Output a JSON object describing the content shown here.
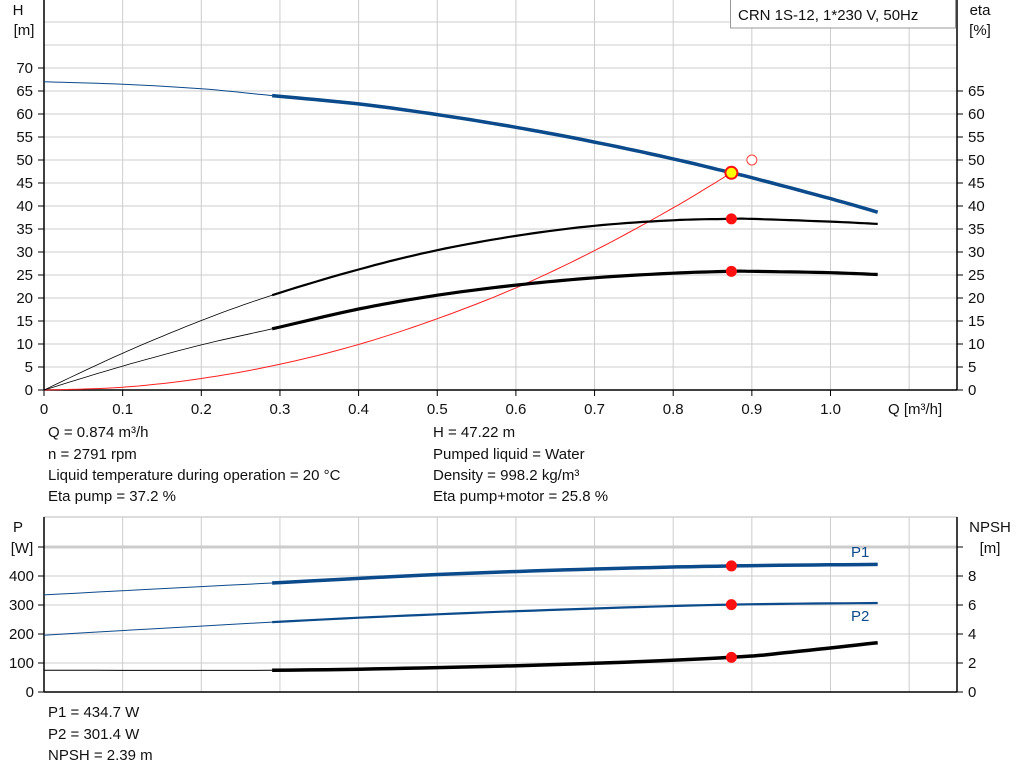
{
  "title_box": "CRN 1S-12, 1*230 V, 50Hz",
  "chart_data": [
    {
      "type": "line",
      "ylabel_left": "H",
      "yunit_left": "[m]",
      "ylabel_right": "eta",
      "yunit_right": "[%]",
      "xlabel": "Q [m³/h]",
      "xlim": [
        0,
        1.16
      ],
      "ylim": [
        0,
        85
      ],
      "x_ticks": [
        "0",
        "0.1",
        "0.2",
        "0.3",
        "0.4",
        "0.5",
        "0.6",
        "0.7",
        "0.8",
        "0.9",
        "1.0"
      ],
      "y_ticks_left": [
        "0",
        "5",
        "10",
        "15",
        "20",
        "25",
        "30",
        "35",
        "40",
        "45",
        "50",
        "55",
        "60",
        "65",
        "70"
      ],
      "y_ticks_right": [
        "0",
        "5",
        "10",
        "15",
        "20",
        "25",
        "30",
        "35",
        "40",
        "45",
        "50",
        "55",
        "60",
        "65"
      ],
      "grid": true,
      "series": [
        {
          "id": "H",
          "color": "#0b4a8b",
          "axis": "left",
          "points": [
            [
              0,
              67
            ],
            [
              0.1,
              66.47
            ],
            [
              0.2,
              65.49
            ],
            [
              0.29,
              64.0
            ],
            [
              0.4,
              62.19
            ],
            [
              0.5,
              59.87
            ],
            [
              0.6,
              57.11
            ],
            [
              0.7,
              53.9
            ],
            [
              0.8,
              50.25
            ],
            [
              0.874,
              47.22
            ],
            [
              0.9,
              46.15
            ],
            [
              1.0,
              41.6
            ],
            [
              1.06,
              38.66
            ]
          ]
        },
        {
          "id": "eta-pump",
          "color": "#000000",
          "axis": "right",
          "points": [
            [
              0,
              0
            ],
            [
              0.1,
              8.0
            ],
            [
              0.2,
              15.1
            ],
            [
              0.29,
              20.6
            ],
            [
              0.4,
              26.2
            ],
            [
              0.5,
              30.4
            ],
            [
              0.6,
              33.5
            ],
            [
              0.7,
              35.7
            ],
            [
              0.8,
              36.9
            ],
            [
              0.874,
              37.2
            ],
            [
              0.9,
              37.2
            ],
            [
              1.0,
              36.6
            ],
            [
              1.06,
              36.1
            ]
          ]
        },
        {
          "id": "eta-pump-motor",
          "color": "#000000",
          "axis": "right",
          "points": [
            [
              0,
              0
            ],
            [
              0.1,
              5.2
            ],
            [
              0.2,
              9.8
            ],
            [
              0.29,
              13.3
            ],
            [
              0.4,
              17.6
            ],
            [
              0.5,
              20.6
            ],
            [
              0.6,
              22.8
            ],
            [
              0.7,
              24.4
            ],
            [
              0.8,
              25.4
            ],
            [
              0.874,
              25.8
            ],
            [
              0.9,
              25.8
            ],
            [
              1.0,
              25.5
            ],
            [
              1.06,
              25.1
            ]
          ]
        },
        {
          "id": "system-curve",
          "color": "#ff2020",
          "axis": "left",
          "points": [
            [
              0,
              0
            ],
            [
              0.1,
              0.6
            ],
            [
              0.2,
              2.5
            ],
            [
              0.3,
              5.6
            ],
            [
              0.4,
              9.9
            ],
            [
              0.5,
              15.5
            ],
            [
              0.6,
              22.2
            ],
            [
              0.7,
              30.3
            ],
            [
              0.8,
              39.6
            ],
            [
              0.874,
              47.22
            ]
          ]
        }
      ],
      "duty_point": {
        "q": 0.874,
        "h": 47.22,
        "eta_pump": 37.2,
        "eta_total": 25.8
      },
      "requested_point": {
        "q": 0.9,
        "h": 50
      }
    },
    {
      "type": "line",
      "ylabel_left": "P",
      "yunit_left": "[W]",
      "ylabel_right": "NPSH",
      "yunit_right": "[m]",
      "xlim": [
        0,
        1.16
      ],
      "ylim": [
        0,
        500
      ],
      "y_ticks_left": [
        "0",
        "100",
        "200",
        "300",
        "400"
      ],
      "y_ticks_right": [
        "0",
        "2",
        "4",
        "6",
        "8"
      ],
      "grid": true,
      "series": [
        {
          "id": "P1",
          "name": "P1",
          "color": "#0b4a8b",
          "axis": "left",
          "points": [
            [
              0,
              335
            ],
            [
              0.29,
              376
            ],
            [
              0.5,
              405
            ],
            [
              0.7,
              424
            ],
            [
              0.874,
              434.7
            ],
            [
              1.06,
              440
            ]
          ]
        },
        {
          "id": "P2",
          "name": "P2",
          "color": "#0b4a8b",
          "axis": "left",
          "points": [
            [
              0,
              196
            ],
            [
              0.29,
              241
            ],
            [
              0.5,
              268
            ],
            [
              0.7,
              288
            ],
            [
              0.874,
              301.4
            ],
            [
              1.06,
              307
            ]
          ]
        },
        {
          "id": "NPSH",
          "color": "#000000",
          "axis": "right",
          "points": [
            [
              0,
              1.5
            ],
            [
              0.29,
              1.5
            ],
            [
              0.5,
              1.68
            ],
            [
              0.7,
              1.98
            ],
            [
              0.874,
              2.39
            ],
            [
              0.95,
              2.75
            ],
            [
              1.06,
              3.4
            ]
          ]
        }
      ]
    }
  ],
  "info_top": {
    "left": [
      "Q = 0.874 m³/h",
      "n = 2791 rpm",
      "Liquid temperature during operation = 20 °C",
      "Eta pump = 37.2 %"
    ],
    "right": [
      "H = 47.22 m",
      "Pumped liquid = Water",
      "Density = 998.2 kg/m³",
      "Eta pump+motor = 25.8 %"
    ]
  },
  "info_bottom": [
    "P1 = 434.7 W",
    "P2 = 301.4 W",
    "NPSH = 2.39 m"
  ]
}
